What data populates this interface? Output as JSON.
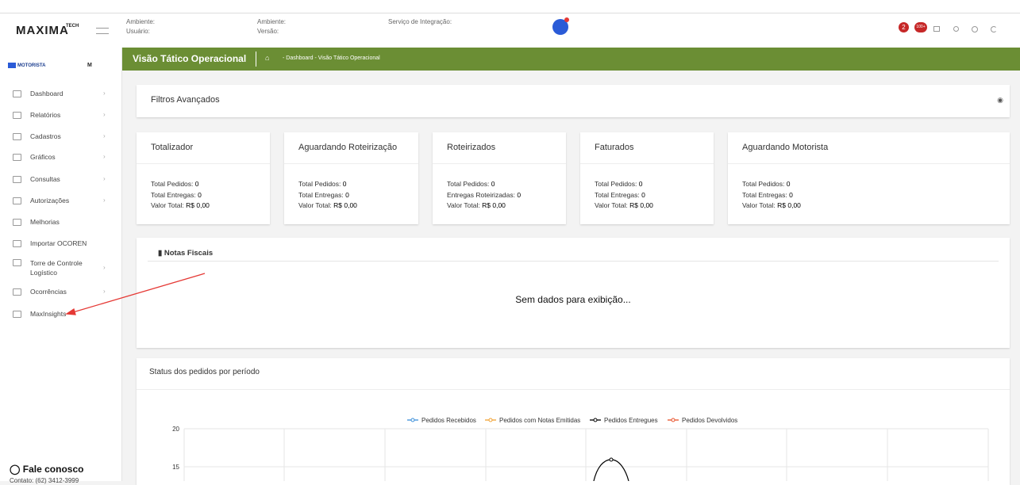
{
  "header": {
    "logo": "MAXIMA",
    "logo_tag": "TECH",
    "env1_label": "Ambiente:",
    "user_label": "Usuário:",
    "env2_label": "Ambiente:",
    "version_label": "Versão:",
    "integration_label": "Serviço de Integração:",
    "badge_1": "2",
    "badge_2": "100+"
  },
  "sidebar": {
    "brand": "MOTORISTA",
    "brand_small": "M",
    "items": [
      "Dashboard",
      "Relatórios",
      "Cadastros",
      "Gráficos",
      "Consultas",
      "Autorizações",
      "Melhorias",
      "Importar OCOREN",
      "Torre de Controle Logístico",
      "Ocorrências",
      "MaxInsights"
    ],
    "contact_title": "Fale conosco",
    "contact": "Contato: (62) 3412-3999"
  },
  "page_bar": {
    "title": "Visão Tático Operacional",
    "breadcrumb": "- Dashboard - Visão Tático Operacional"
  },
  "filters": {
    "title": "Filtros Avançados"
  },
  "cards": [
    {
      "title": "Totalizador",
      "rows": [
        {
          "label": "Total Pedidos:",
          "value": "0"
        },
        {
          "label": "Total Entregas:",
          "value": "0"
        },
        {
          "label": "Valor Total:",
          "value": "R$ 0,00"
        }
      ]
    },
    {
      "title": "Aguardando Roteirização",
      "rows": [
        {
          "label": "Total Pedidos:",
          "value": "0"
        },
        {
          "label": "Total Entregas:",
          "value": "0"
        },
        {
          "label": "Valor Total:",
          "value": "R$ 0,00"
        }
      ]
    },
    {
      "title": "Roteirizados",
      "rows": [
        {
          "label": "Total Pedidos:",
          "value": "0"
        },
        {
          "label": "Entregas Roteirizadas:",
          "value": "0"
        },
        {
          "label": "Valor Total:",
          "value": "R$ 0,00"
        }
      ]
    },
    {
      "title": "Faturados",
      "rows": [
        {
          "label": "Total Pedidos:",
          "value": "0"
        },
        {
          "label": "Total Entregas:",
          "value": "0"
        },
        {
          "label": "Valor Total:",
          "value": "R$ 0,00"
        }
      ]
    },
    {
      "title": "Aguardando Motorista",
      "rows": [
        {
          "label": "Total Pedidos:",
          "value": "0"
        },
        {
          "label": "Total Entregas:",
          "value": "0"
        },
        {
          "label": "Valor Total:",
          "value": "R$ 0,00"
        }
      ]
    }
  ],
  "notas": {
    "title": "Notas Fiscais",
    "empty": "Sem dados para exibição..."
  },
  "status": {
    "title": "Status dos pedidos por período",
    "legend": [
      {
        "name": "Pedidos Recebidos",
        "color": "#3b8fd9"
      },
      {
        "name": "Pedidos com Notas Emitidas",
        "color": "#f0a030"
      },
      {
        "name": "Pedidos Entregues",
        "color": "#000000"
      },
      {
        "name": "Pedidos Devolvidos",
        "color": "#e8502a"
      }
    ],
    "yticks": [
      "20",
      "15"
    ]
  }
}
